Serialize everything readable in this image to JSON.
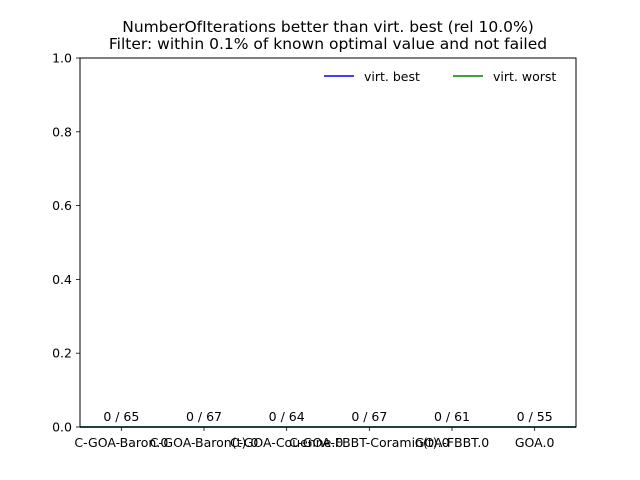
{
  "chart_data": {
    "type": "bar",
    "title": "NumberOfIterations better than virt. best (rel 10.0%)",
    "subtitle": "Filter: within 0.1% of known optimal value and not failed",
    "xlabel": "",
    "ylabel": "",
    "ylim": [
      0,
      1.0
    ],
    "yticks": [
      "0.0",
      "0.2",
      "0.4",
      "0.6",
      "0.8",
      "1.0"
    ],
    "categories": [
      "C-GOA-Baron.0",
      "C-GOA-Baron(t).0",
      "C-GOA-Couenne.0",
      "C-GOA-FBBT-Coramin(t).0",
      "GOA-FBBT.0",
      "GOA.0"
    ],
    "values": [
      0,
      0,
      0,
      0,
      0,
      0
    ],
    "bar_labels": [
      "0 / 65",
      "0 / 67",
      "0 / 64",
      "0 / 67",
      "0 / 61",
      "0 / 55"
    ],
    "reference_lines": [
      {
        "name": "virt. best",
        "value": 0,
        "color": "#0000ff"
      },
      {
        "name": "virt. worst",
        "value": 0,
        "color": "#008000"
      }
    ],
    "legend_position": "top-right",
    "grid": false
  }
}
